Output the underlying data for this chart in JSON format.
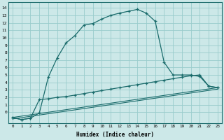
{
  "xlabel": "Humidex (Indice chaleur)",
  "bg_color": "#cce8e8",
  "grid_color": "#99cccc",
  "line_color": "#1a6b6b",
  "xlim": [
    -0.5,
    23.5
  ],
  "ylim": [
    -1.5,
    14.8
  ],
  "xticks": [
    0,
    1,
    2,
    3,
    4,
    5,
    6,
    7,
    8,
    9,
    10,
    11,
    12,
    13,
    14,
    15,
    16,
    17,
    18,
    19,
    20,
    21,
    22,
    23
  ],
  "yticks": [
    0,
    1,
    2,
    3,
    4,
    5,
    6,
    7,
    8,
    9,
    10,
    11,
    12,
    13,
    14
  ],
  "curve1_x": [
    0,
    1,
    2,
    3,
    4,
    5,
    6,
    7,
    8,
    9,
    10,
    11,
    12,
    13,
    14,
    15,
    16,
    17,
    18,
    19,
    20,
    21,
    22,
    23
  ],
  "curve1_y": [
    -0.7,
    -1.0,
    -0.8,
    -0.1,
    4.7,
    7.3,
    9.3,
    10.3,
    11.7,
    11.9,
    12.5,
    13.0,
    13.3,
    13.55,
    13.8,
    13.3,
    12.2,
    6.7,
    5.0,
    5.0,
    5.0,
    4.8,
    3.5,
    3.3
  ],
  "curve2_x": [
    0,
    1,
    2,
    3,
    4,
    5,
    6,
    7,
    8,
    9,
    10,
    11,
    12,
    13,
    14,
    15,
    16,
    17,
    18,
    19,
    20,
    21,
    22,
    23
  ],
  "curve2_y": [
    -0.7,
    -1.0,
    -0.8,
    1.7,
    1.8,
    2.0,
    2.1,
    2.3,
    2.5,
    2.7,
    2.9,
    3.1,
    3.3,
    3.5,
    3.7,
    3.9,
    4.1,
    4.3,
    4.5,
    4.7,
    4.9,
    5.0,
    3.5,
    3.3
  ],
  "line3_x": [
    0,
    23
  ],
  "line3_y": [
    -0.7,
    3.3
  ],
  "line4_x": [
    0,
    23
  ],
  "line4_y": [
    -0.9,
    3.1
  ]
}
